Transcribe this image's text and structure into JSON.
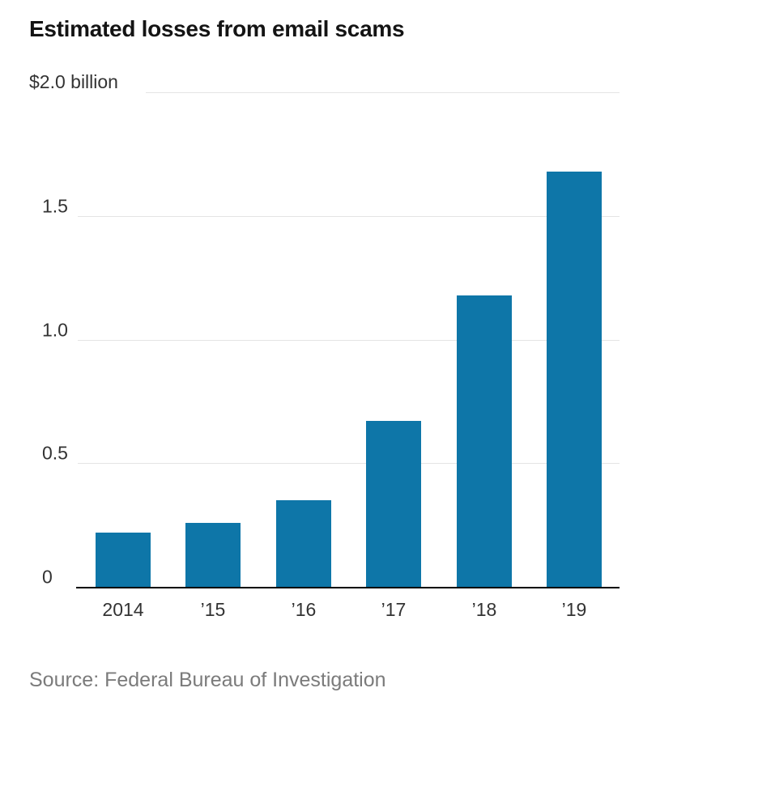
{
  "title": "Estimated losses from email scams",
  "top_axis_label": "$2.0 billion",
  "source": "Source: Federal Bureau of Investigation",
  "colors": {
    "bar": "#0e76a8",
    "gridline": "#e4e4e4",
    "axis": "#000000",
    "title_text": "#141414",
    "tick_text": "#333333",
    "source_text": "#7b7b7b"
  },
  "chart_data": {
    "type": "bar",
    "title": "Estimated losses from email scams",
    "categories": [
      "2014",
      "’15",
      "’16",
      "’17",
      "’18",
      "’19"
    ],
    "values": [
      0.22,
      0.26,
      0.35,
      0.67,
      1.18,
      1.68
    ],
    "xlabel": "",
    "ylabel": "$ billion",
    "ylim": [
      0,
      2.0
    ],
    "yticks": [
      0,
      0.5,
      1.0,
      1.5,
      2.0
    ],
    "ytick_labels": [
      "0",
      "0.5",
      "1.0",
      "1.5",
      "$2.0 billion"
    ],
    "grid": true,
    "legend_position": "none",
    "source": "Source: Federal Bureau of Investigation"
  }
}
